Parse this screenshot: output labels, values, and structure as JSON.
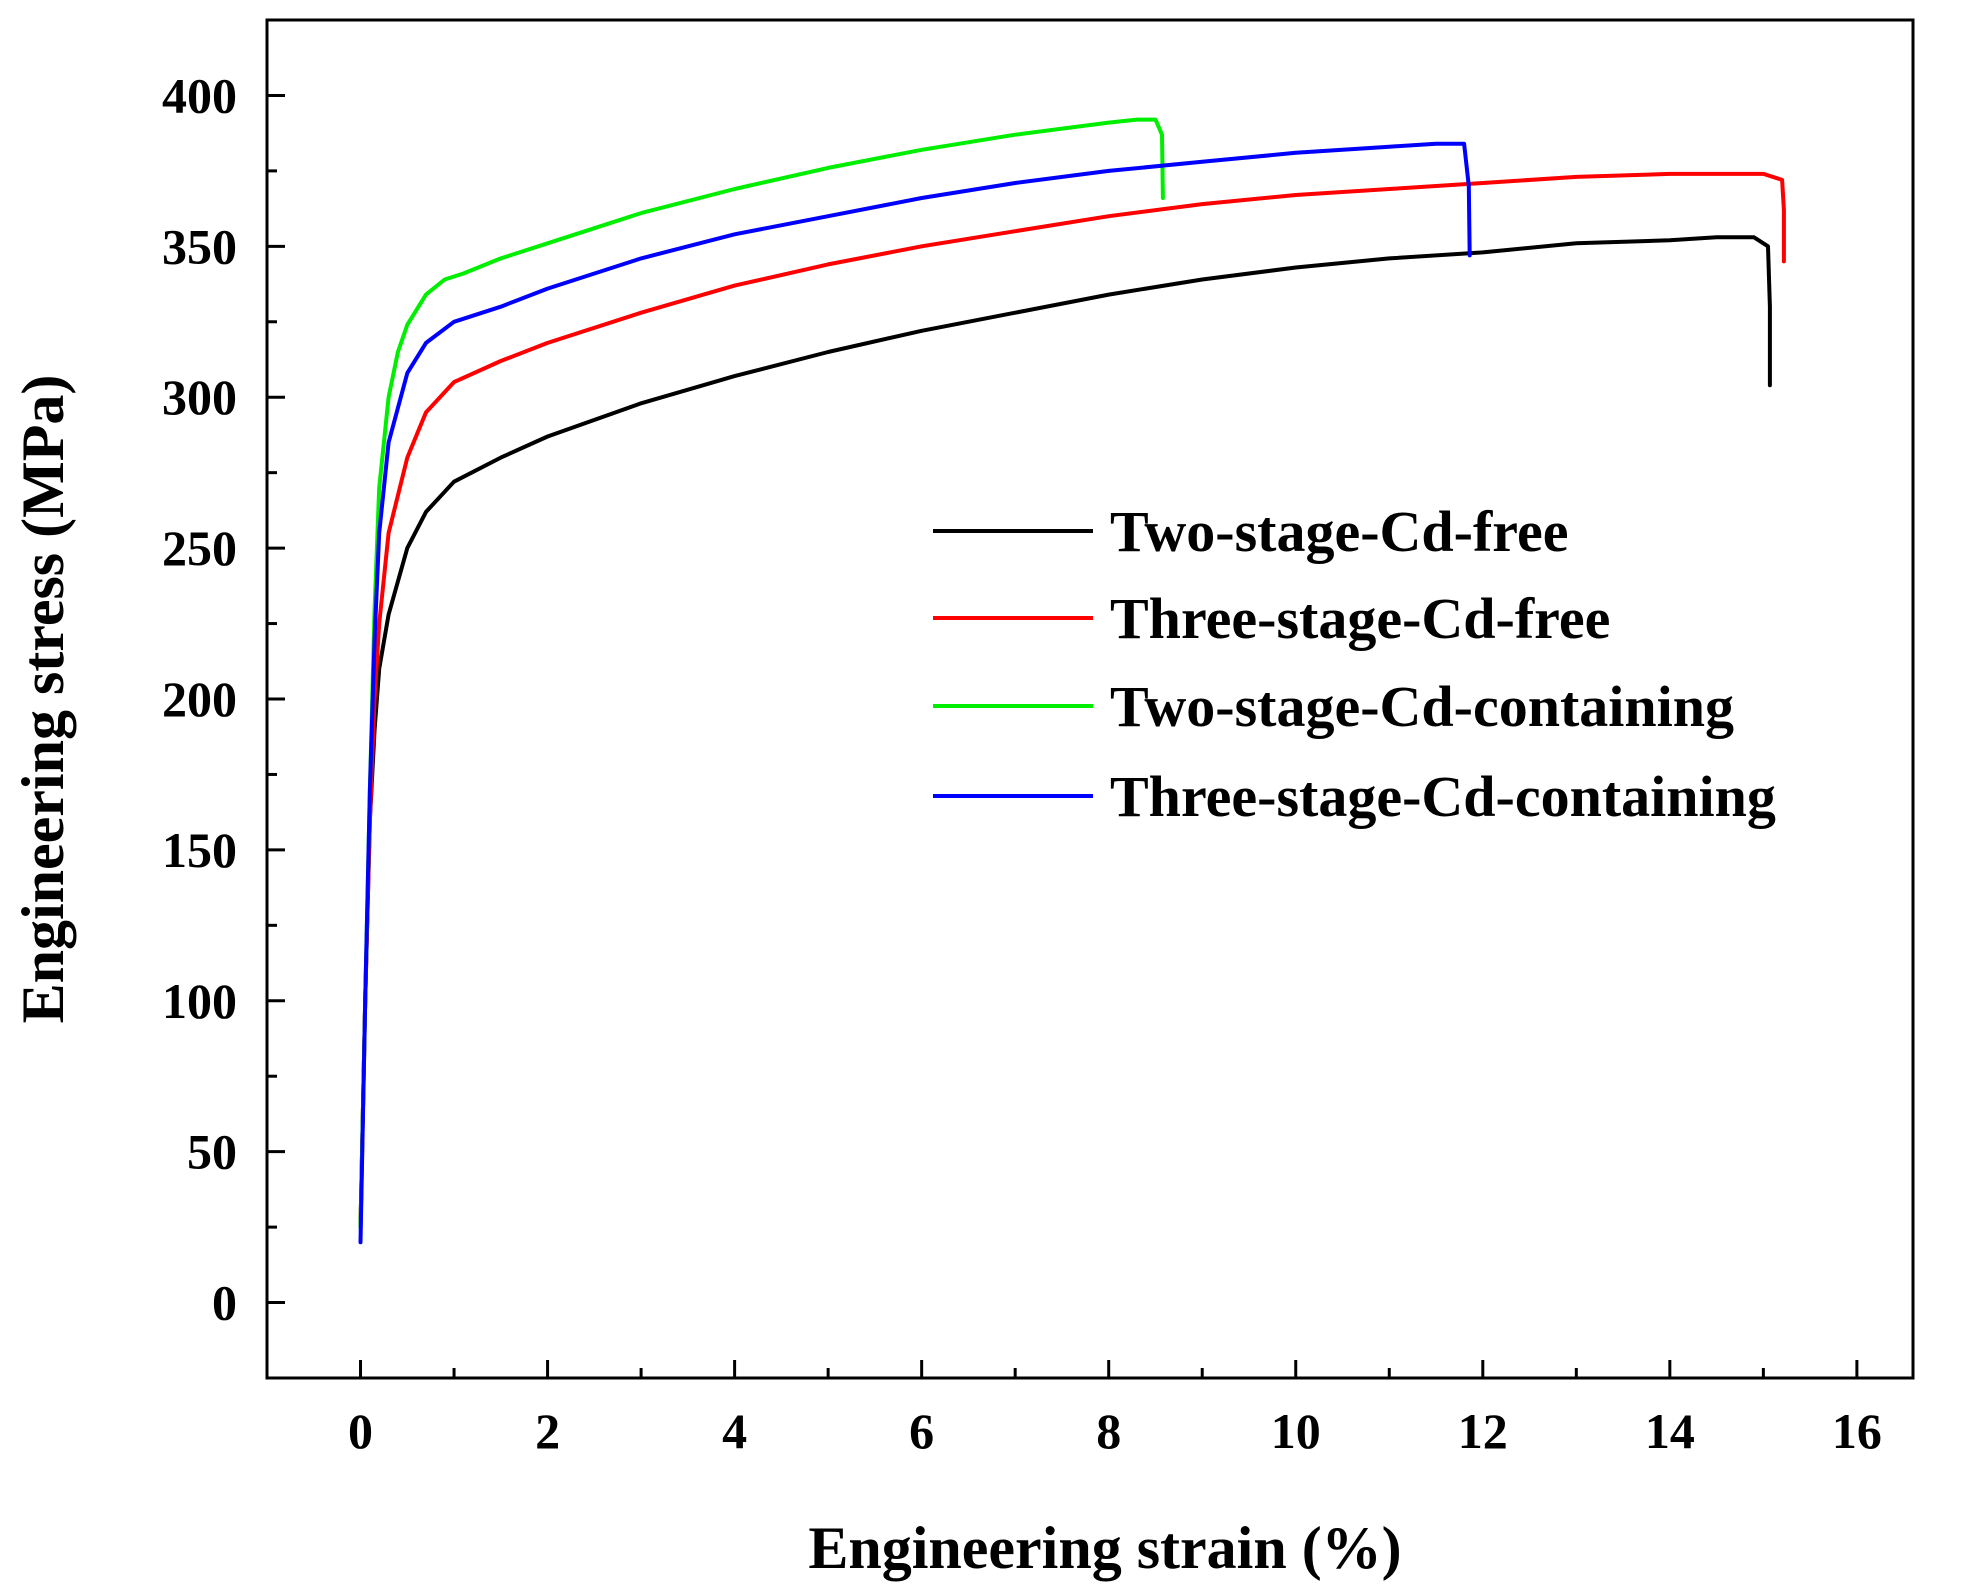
{
  "chart_data": {
    "type": "line",
    "title": "",
    "xlabel": "Engineering strain (%)",
    "ylabel": "Engineering stress (MPa)",
    "xlim": [
      -1,
      16.6
    ],
    "ylim": [
      -25,
      425
    ],
    "xticks": [
      0,
      2,
      4,
      6,
      8,
      10,
      12,
      14,
      16
    ],
    "yticks": [
      0,
      50,
      100,
      150,
      200,
      250,
      300,
      350,
      400
    ],
    "xtick_labels": [
      "0",
      "2",
      "4",
      "6",
      "8",
      "10",
      "12",
      "14",
      "16"
    ],
    "ytick_labels": [
      "0",
      "50",
      "100",
      "150",
      "200",
      "250",
      "300",
      "350",
      "400"
    ],
    "legend_position": "center-right",
    "series": [
      {
        "name": "Two-stage-Cd-free",
        "color": "#000000",
        "x": [
          0,
          0.05,
          0.1,
          0.15,
          0.2,
          0.3,
          0.5,
          0.7,
          1.0,
          1.5,
          2,
          3,
          4,
          5,
          6,
          7,
          8,
          9,
          10,
          11,
          12,
          13,
          14,
          14.5,
          14.9,
          15.05,
          15.07,
          15.07
        ],
        "y": [
          25,
          100,
          160,
          190,
          210,
          228,
          250,
          262,
          272,
          280,
          287,
          298,
          307,
          315,
          322,
          328,
          334,
          339,
          343,
          346,
          348,
          351,
          352,
          353,
          353,
          350,
          330,
          304
        ]
      },
      {
        "name": "Three-stage-Cd-free",
        "color": "#ff0000",
        "x": [
          0,
          0.05,
          0.1,
          0.15,
          0.2,
          0.3,
          0.5,
          0.7,
          1.0,
          1.5,
          2,
          3,
          4,
          5,
          6,
          7,
          8,
          9,
          10,
          11,
          12,
          13,
          14,
          14.5,
          15.0,
          15.2,
          15.22,
          15.22
        ],
        "y": [
          25,
          100,
          160,
          200,
          225,
          255,
          280,
          295,
          305,
          312,
          318,
          328,
          337,
          344,
          350,
          355,
          360,
          364,
          367,
          369,
          371,
          373,
          374,
          374,
          374,
          372,
          362,
          345
        ]
      },
      {
        "name": "Two-stage-Cd-containing",
        "color": "#00ee00",
        "x": [
          0,
          0.05,
          0.1,
          0.15,
          0.2,
          0.3,
          0.4,
          0.5,
          0.7,
          0.9,
          1.1,
          1.5,
          2,
          3,
          4,
          5,
          6,
          7,
          8,
          8.3,
          8.5,
          8.57,
          8.58
        ],
        "y": [
          25,
          100,
          170,
          230,
          270,
          300,
          315,
          324,
          334,
          339,
          341,
          346,
          351,
          361,
          369,
          376,
          382,
          387,
          391,
          392,
          392,
          387,
          366
        ]
      },
      {
        "name": "Three-stage-Cd-containing",
        "color": "#0000ff",
        "x": [
          0,
          0.05,
          0.1,
          0.15,
          0.2,
          0.3,
          0.5,
          0.7,
          1.0,
          1.5,
          2,
          3,
          4,
          5,
          6,
          7,
          8,
          9,
          10,
          11,
          11.5,
          11.8,
          11.85,
          11.86
        ],
        "y": [
          20,
          100,
          170,
          220,
          255,
          285,
          308,
          318,
          325,
          330,
          336,
          346,
          354,
          360,
          366,
          371,
          375,
          378,
          381,
          383,
          384,
          384,
          370,
          347
        ]
      }
    ]
  }
}
